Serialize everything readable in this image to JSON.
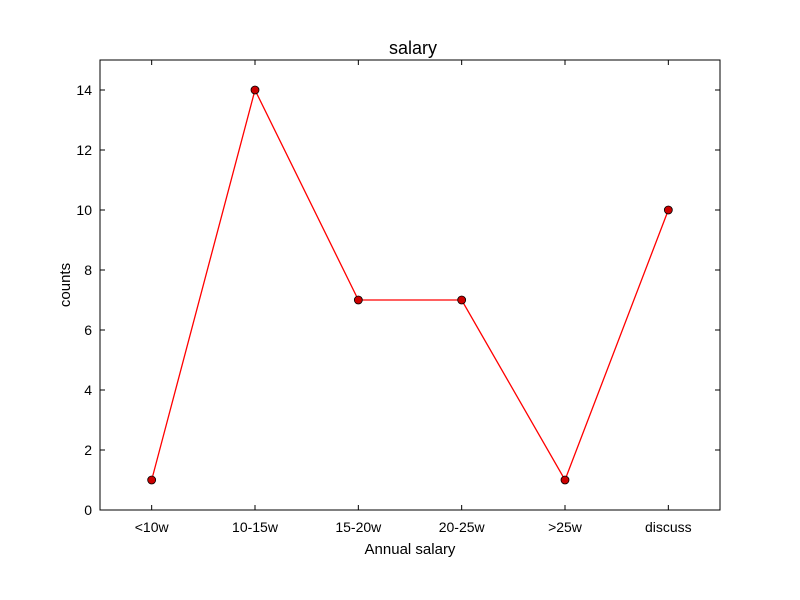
{
  "chart_data": {
    "type": "line",
    "title": "salary",
    "xlabel": "Annual salary",
    "ylabel": "counts",
    "categories": [
      "<10w",
      "10-15w",
      "15-20w",
      "20-25w",
      ">25w",
      "discuss"
    ],
    "series": [
      {
        "values": [
          1,
          14,
          7,
          7,
          1,
          10
        ],
        "color": "#ff0000",
        "marker_fill": "#cc0000",
        "marker_edge": "#000000"
      }
    ],
    "ylim": [
      0,
      15
    ],
    "yticks": [
      0,
      2,
      4,
      6,
      8,
      10,
      12,
      14
    ],
    "xlim": [
      0.5,
      6.5
    ],
    "grid": false,
    "legend": "none"
  }
}
